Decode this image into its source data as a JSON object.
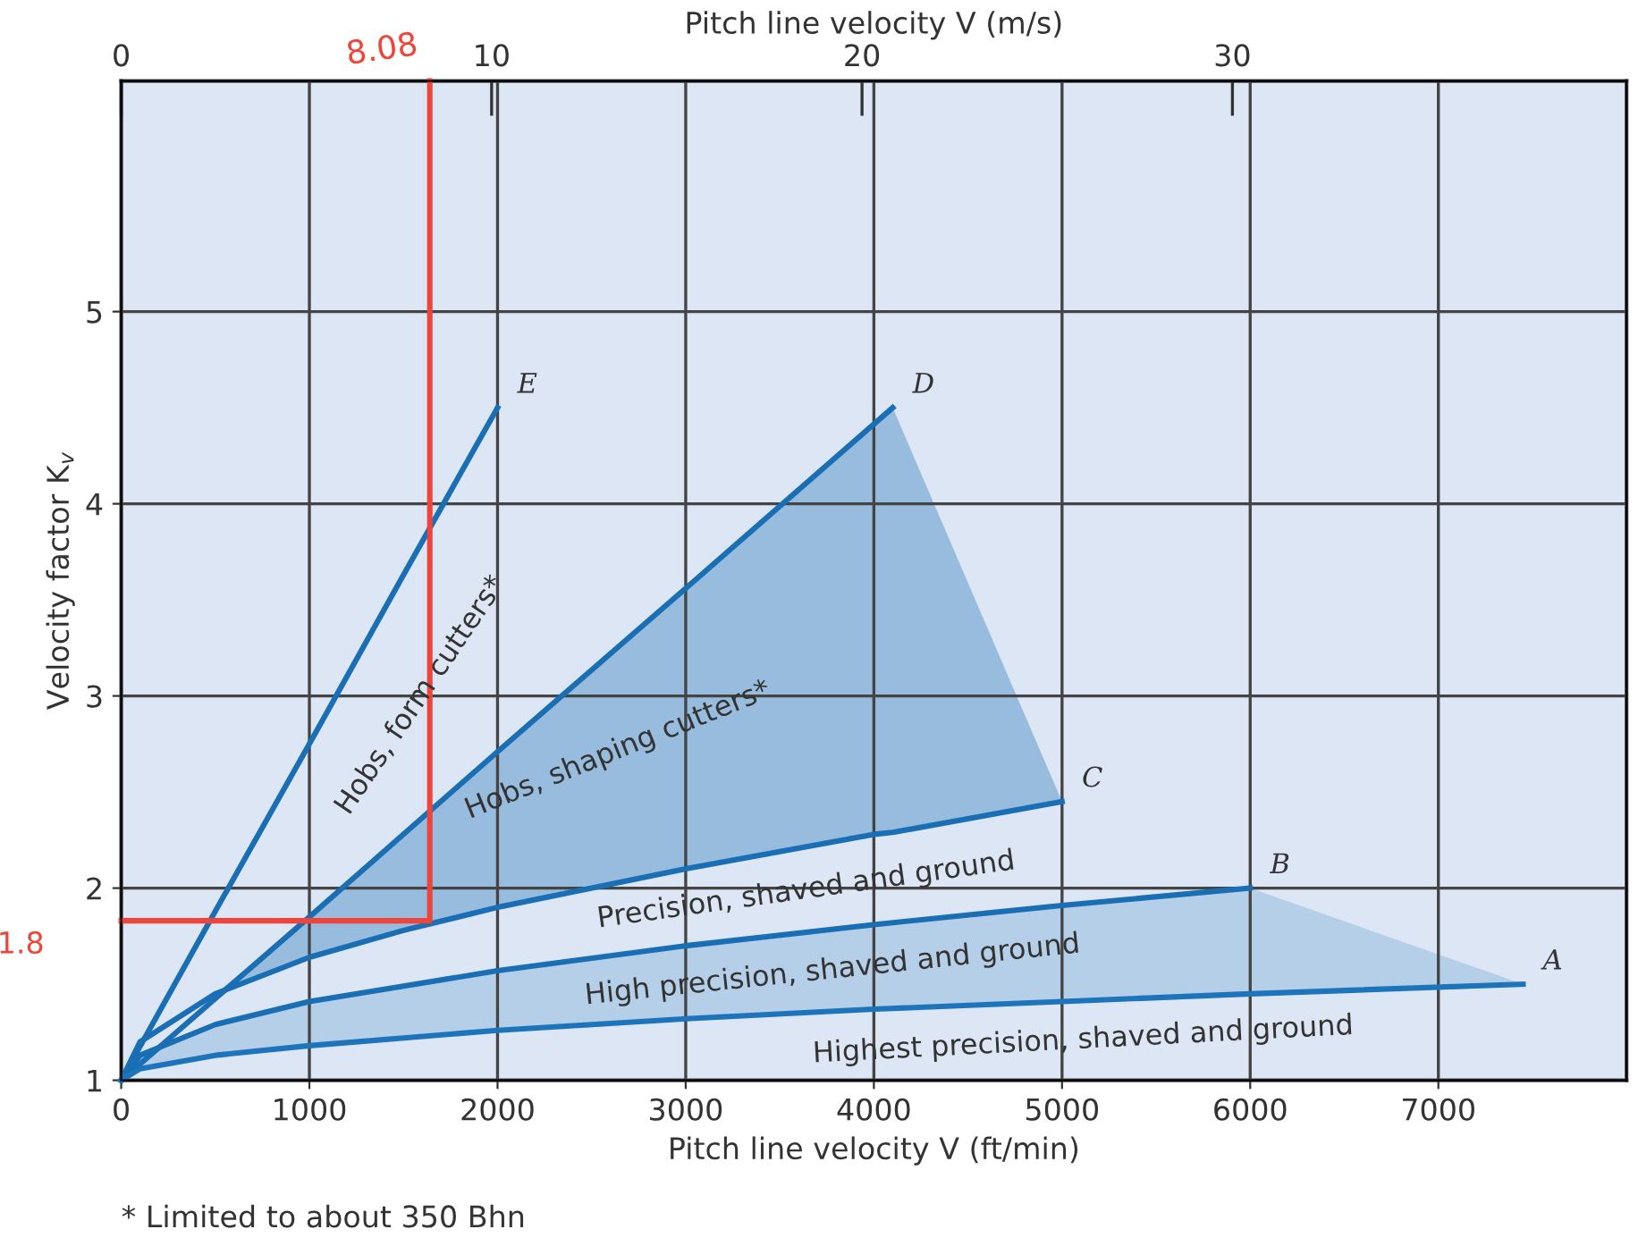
{
  "chart_data": {
    "type": "line",
    "xlabel": "Pitch line velocity V (ft/min)",
    "ylabel": "Velocity factor K$_{v}$",
    "x2label": "Pitch line velocity V (m/s)",
    "xlim": [
      0,
      8000
    ],
    "xticks": [
      0,
      1000,
      2000,
      3000,
      4000,
      5000,
      6000,
      7000
    ],
    "ylim": [
      1,
      6.2
    ],
    "yticks": [
      1,
      2,
      3,
      4,
      5
    ],
    "x2lim": [
      0,
      40.64
    ],
    "x2ticks": [
      0,
      10,
      20,
      30
    ],
    "grid": true,
    "series": [
      {
        "name": "E",
        "color": "#1a6eb4",
        "x": [
          0,
          500,
          1000,
          1500,
          2000
        ],
        "values": [
          1,
          1.88,
          2.75,
          3.63,
          4.5
        ]
      },
      {
        "name": "D",
        "color": "#1a6eb4",
        "x": [
          0,
          1000,
          2000,
          3000,
          4100
        ],
        "values": [
          1,
          1.85,
          2.71,
          3.56,
          4.5
        ]
      },
      {
        "name": "C",
        "color": "#1a6eb4",
        "x": [
          0,
          100,
          500,
          1000,
          1500,
          2000,
          3000,
          4000,
          4100,
          5000
        ],
        "values": [
          1,
          1.2,
          1.45,
          1.64,
          1.78,
          1.9,
          2.1,
          2.28,
          2.29,
          2.45
        ],
        "lower": [
          1,
          1.2,
          1.45,
          1.64,
          1.78,
          1.9,
          2.1,
          2.28,
          2.29,
          2.45
        ],
        "upper": [
          1,
          1.2,
          1.45,
          1.85,
          2.28,
          2.71,
          3.56,
          4.41,
          4.5,
          2.45
        ]
      },
      {
        "name": "B",
        "color": "#1a6eb4",
        "x": [
          0,
          100,
          500,
          1000,
          2000,
          3000,
          4000,
          5000,
          6000
        ],
        "values": [
          1,
          1.13,
          1.29,
          1.41,
          1.57,
          1.7,
          1.81,
          1.91,
          2.0
        ]
      },
      {
        "name": "A",
        "color": "#1e74ba",
        "x": [
          0,
          100,
          500,
          1000,
          2000,
          3000,
          4000,
          5000,
          6000,
          7450
        ],
        "values": [
          1,
          1.06,
          1.13,
          1.18,
          1.26,
          1.32,
          1.37,
          1.41,
          1.45,
          1.5
        ],
        "lower": [
          1,
          1.06,
          1.13,
          1.18,
          1.26,
          1.32,
          1.37,
          1.41,
          1.45,
          1.5
        ],
        "upper": [
          1,
          1.13,
          1.29,
          1.41,
          1.57,
          1.7,
          1.81,
          1.91,
          2.0,
          1.5
        ]
      },
      {
        "color": "#f0443a",
        "x": [
          0,
          1640,
          1640
        ],
        "values": [
          1.83,
          1.83,
          6.2
        ]
      }
    ],
    "annotations": [
      "Hobs, form cutters*",
      "Hobs, shaping cutters*",
      "Precision, shaved and ground",
      "High precision, shaved and ground",
      "Highest precision, shaved and ground",
      {
        "text": "8.08",
        "x": 1640,
        "y": 6.2
      },
      {
        "text": "1.8",
        "x": 0,
        "y": 1.83
      },
      "* Limited to about 350 Bhn"
    ]
  }
}
